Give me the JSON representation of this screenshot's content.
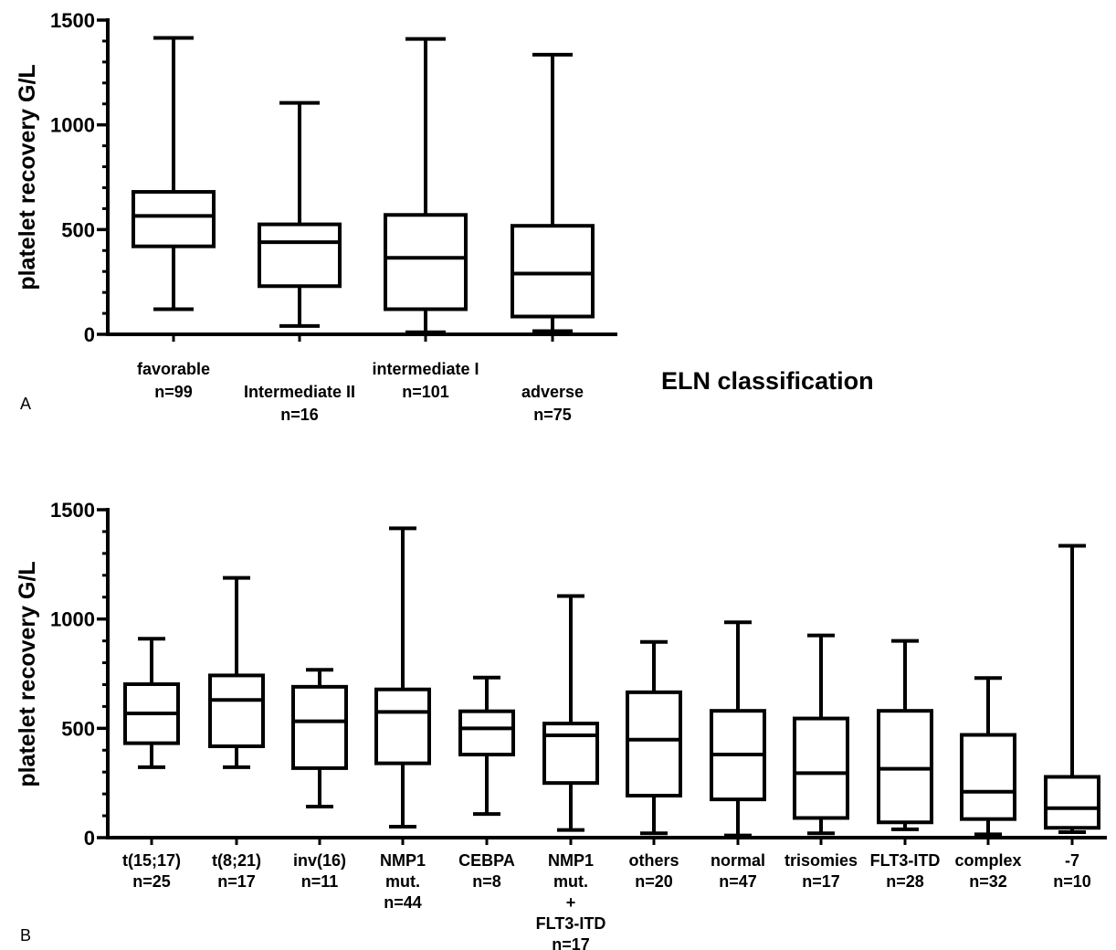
{
  "chart_data": [
    {
      "type": "box",
      "panel_label": "A",
      "ylabel": "platelet recovery G/L",
      "xlabel": "ELN classification",
      "ylim": [
        0,
        1500
      ],
      "yticks": [
        "0",
        "500",
        "1000",
        "1500"
      ],
      "categories": [
        {
          "lines": [
            "favorable",
            "n=99"
          ],
          "min": 120,
          "q1": 420,
          "median": 565,
          "q3": 680,
          "max": 1415
        },
        {
          "lines": [
            "Intermediate II",
            "n=16"
          ],
          "min": 40,
          "q1": 230,
          "median": 440,
          "q3": 525,
          "max": 1105
        },
        {
          "lines": [
            "intermediate I",
            "n=101"
          ],
          "min": 10,
          "q1": 120,
          "median": 365,
          "q3": 570,
          "max": 1410
        },
        {
          "lines": [
            "adverse",
            "n=75"
          ],
          "min": 15,
          "q1": 85,
          "median": 290,
          "q3": 518,
          "max": 1335
        }
      ]
    },
    {
      "type": "box",
      "panel_label": "B",
      "ylabel": "platelet recovery G/L",
      "ylim": [
        0,
        1500
      ],
      "yticks": [
        "0",
        "500",
        "1000",
        "1500"
      ],
      "categories": [
        {
          "lines": [
            "t(15;17)",
            "n=25"
          ],
          "min": 322,
          "q1": 432,
          "median": 568,
          "q3": 702,
          "max": 910
        },
        {
          "lines": [
            "t(8;21)",
            "n=17"
          ],
          "min": 322,
          "q1": 418,
          "median": 630,
          "q3": 742,
          "max": 1188
        },
        {
          "lines": [
            "inv(16)",
            "n=11"
          ],
          "min": 142,
          "q1": 318,
          "median": 532,
          "q3": 690,
          "max": 768
        },
        {
          "lines": [
            "NMP1",
            "mut.",
            "n=44"
          ],
          "min": 50,
          "q1": 340,
          "median": 575,
          "q3": 678,
          "max": 1415
        },
        {
          "lines": [
            "CEBPA",
            "n=8"
          ],
          "min": 108,
          "q1": 380,
          "median": 500,
          "q3": 578,
          "max": 732
        },
        {
          "lines": [
            "NMP1",
            "mut.",
            "+",
            "FLT3-ITD",
            "n=17"
          ],
          "min": 35,
          "q1": 250,
          "median": 468,
          "q3": 522,
          "max": 1105
        },
        {
          "lines": [
            "others",
            "n=20"
          ],
          "min": 20,
          "q1": 192,
          "median": 448,
          "q3": 665,
          "max": 895
        },
        {
          "lines": [
            "normal",
            "n=47"
          ],
          "min": 10,
          "q1": 175,
          "median": 380,
          "q3": 580,
          "max": 985
        },
        {
          "lines": [
            "trisomies",
            "n=17"
          ],
          "min": 20,
          "q1": 90,
          "median": 295,
          "q3": 545,
          "max": 925
        },
        {
          "lines": [
            "FLT3-ITD",
            "n=28"
          ],
          "min": 38,
          "q1": 70,
          "median": 315,
          "q3": 580,
          "max": 900
        },
        {
          "lines": [
            "complex",
            "n=32"
          ],
          "min": 15,
          "q1": 85,
          "median": 210,
          "q3": 470,
          "max": 730
        },
        {
          "lines": [
            "-7",
            "n=10"
          ],
          "min": 25,
          "q1": 45,
          "median": 135,
          "q3": 278,
          "max": 1335
        }
      ]
    }
  ]
}
